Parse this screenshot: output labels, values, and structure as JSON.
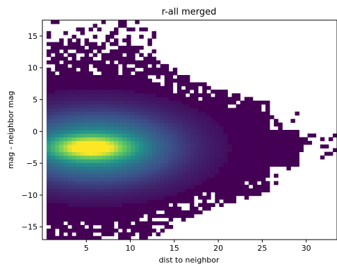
{
  "chart_data": {
    "type": "heatmap",
    "title": "r-all merged",
    "xlabel": "dist to neighbor",
    "ylabel": "mag - neighbor mag",
    "xlim": [
      0,
      33.5
    ],
    "ylim": [
      -17,
      17.5
    ],
    "xticks": [
      5,
      10,
      15,
      20,
      25,
      30
    ],
    "yticks": [
      -15,
      -10,
      -5,
      0,
      5,
      10,
      15
    ],
    "colormap": "viridis",
    "grid": false,
    "bins": {
      "x_count": 70,
      "y_count": 60
    },
    "density_peak": {
      "x": 5.5,
      "y": -2.5
    },
    "colors": {
      "background": "#ffffff",
      "low": "#440154",
      "mid": "#21918c",
      "high": "#fde725"
    }
  }
}
